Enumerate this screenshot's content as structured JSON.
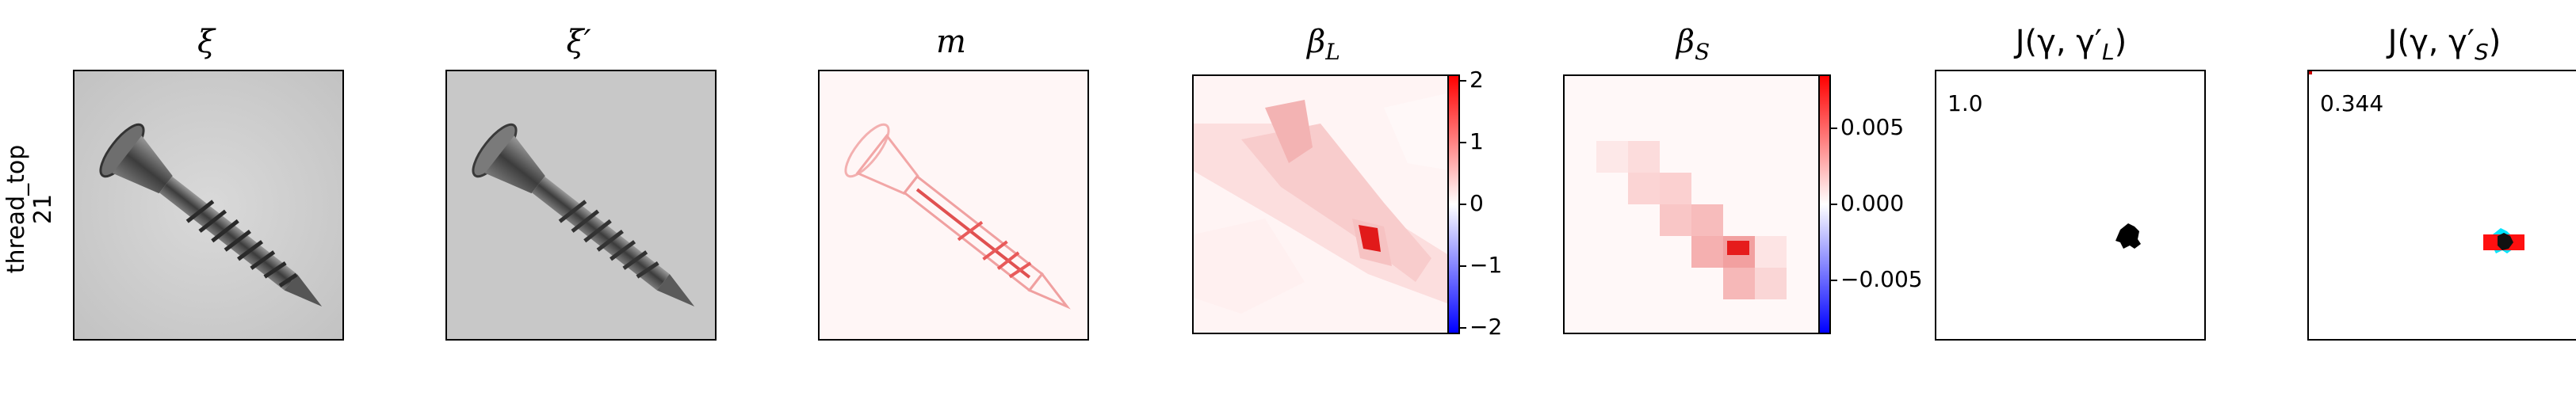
{
  "row_label": [
    "thread_top",
    "21"
  ],
  "panels": [
    {
      "title": "ξ"
    },
    {
      "title": "ξ′"
    },
    {
      "title": "m"
    },
    {
      "title": "β",
      "subscript": "L"
    },
    {
      "title": "β",
      "subscript": "S"
    },
    {
      "title": "J(γ, γ′",
      "subscript": "L",
      "close": ")",
      "score": "1.0"
    },
    {
      "title": "J(γ, γ′",
      "subscript": "S",
      "close": ")",
      "score": "0.344"
    }
  ],
  "colorbar_L": {
    "ticks": [
      "2",
      "1",
      "0",
      "−1",
      "−2"
    ],
    "range": [
      -2.1,
      2.1
    ]
  },
  "colorbar_S": {
    "ticks": [
      "0.005",
      "0.000",
      "−0.005"
    ],
    "range": [
      -0.0085,
      0.0085
    ]
  },
  "colors": {
    "pos": "#ff0000",
    "neg": "#0000ff",
    "mask_a": "#000000",
    "mask_b_red": "#ff0000",
    "mask_b_cyan": "#00ffff"
  }
}
